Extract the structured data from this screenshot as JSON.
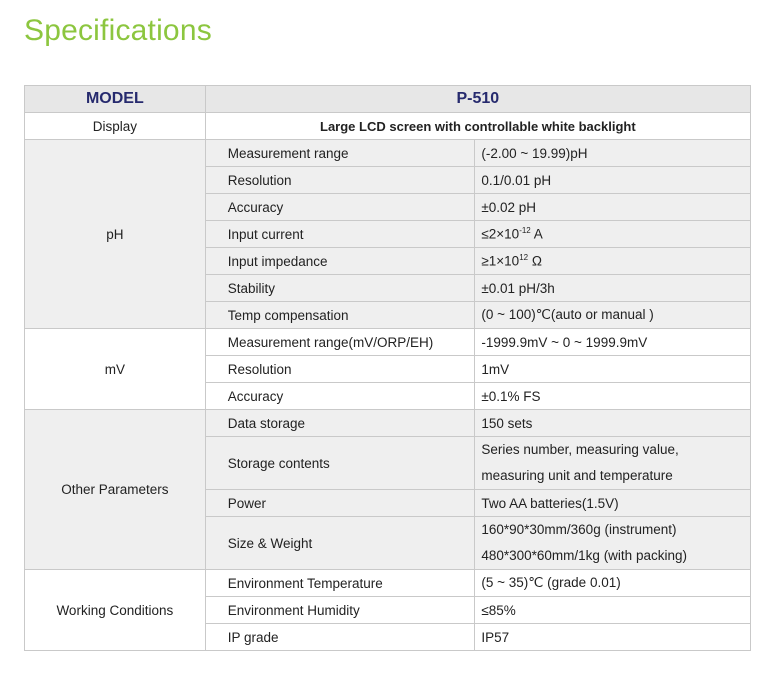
{
  "title": "Specifications",
  "header": {
    "label": "MODEL",
    "value": "P-510"
  },
  "display": {
    "label": "Display",
    "value": "Large LCD screen with controllable white backlight"
  },
  "sections": [
    {
      "category": "pH",
      "shade": "gray",
      "rows": [
        {
          "label": "Measurement range",
          "value": "(-2.00 ~ 19.99)pH"
        },
        {
          "label": "Resolution",
          "value": "0.1/0.01 pH"
        },
        {
          "label": "Accuracy",
          "value": "±0.02 pH"
        },
        {
          "label": "Input current",
          "value": "≤2×10",
          "sup": "-12",
          "post": " A"
        },
        {
          "label": "Input impedance",
          "value": "≥1×10",
          "sup": "12",
          "post": " Ω"
        },
        {
          "label": "Stability",
          "value": "±0.01 pH/3h"
        },
        {
          "label": "Temp compensation",
          "value": "(0 ~ 100)℃(auto or manual )"
        }
      ]
    },
    {
      "category": "mV",
      "shade": "white",
      "rows": [
        {
          "label": "Measurement range(mV/ORP/EH)",
          "value": "-1999.9mV ~ 0 ~ 1999.9mV"
        },
        {
          "label": "Resolution",
          "value": "1mV"
        },
        {
          "label": "Accuracy",
          "value": "±0.1% FS"
        }
      ]
    },
    {
      "category": "Other Parameters",
      "shade": "gray",
      "rows": [
        {
          "label": "Data storage",
          "value": "150 sets"
        },
        {
          "label": "Storage contents",
          "value": "Series number, measuring value,",
          "value2": "measuring unit and temperature"
        },
        {
          "label": "Power",
          "value": "Two AA batteries(1.5V)"
        },
        {
          "label": "Size & Weight",
          "value": "160*90*30mm/360g (instrument)",
          "value2": "480*300*60mm/1kg (with packing)"
        }
      ]
    },
    {
      "category": "Working Conditions",
      "shade": "white",
      "rows": [
        {
          "label": "Environment Temperature",
          "value": "(5 ~ 35)℃ (grade 0.01)"
        },
        {
          "label": "Environment Humidity",
          "value": "≤85%"
        },
        {
          "label": "IP grade",
          "value": "IP57"
        }
      ]
    }
  ]
}
